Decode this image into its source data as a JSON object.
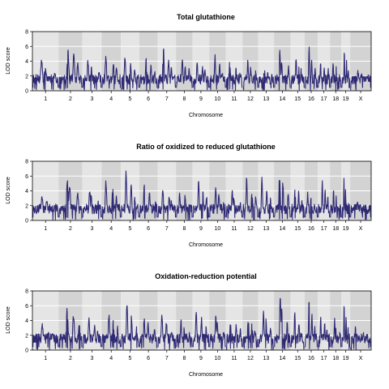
{
  "chart_data": [
    {
      "type": "line",
      "title": "Total glutathione",
      "xlabel": "Chromosome",
      "ylabel": "LOD score",
      "ylim": [
        0,
        8
      ],
      "yticks": [
        "0",
        "2",
        "4",
        "6",
        "8"
      ],
      "chromosomes": [
        "1",
        "2",
        "3",
        "4",
        "5",
        "6",
        "7",
        "8",
        "9",
        "10",
        "11",
        "12",
        "13",
        "14",
        "15",
        "16",
        "17",
        "18",
        "19",
        "X"
      ],
      "grid": true,
      "series": [
        {
          "color": "#2e2a74",
          "peaks": [
            [
              4.0,
              3.0,
              2.0
            ],
            [
              5.3,
              4.5,
              3.5
            ],
            [
              3.8,
              3.0,
              2.5
            ],
            [
              4.5,
              3.5,
              3.0
            ],
            [
              4.5,
              3.5,
              2.5
            ],
            [
              4.3,
              3.0,
              2.0
            ],
            [
              5.6,
              4.0,
              3.0
            ],
            [
              4.2,
              3.0,
              2.5
            ],
            [
              3.8,
              3.0,
              2.5
            ],
            [
              4.4,
              3.5,
              2.5
            ],
            [
              3.8,
              3.0,
              2.0
            ],
            [
              3.6,
              3.0,
              2.5
            ],
            [
              3.3,
              2.5,
              2.0
            ],
            [
              5.3,
              4.0,
              3.0
            ],
            [
              4.3,
              3.0,
              2.5
            ],
            [
              5.8,
              4.0,
              3.0
            ],
            [
              3.8,
              3.0,
              2.5
            ],
            [
              3.8,
              3.0,
              2.0
            ],
            [
              5.3,
              4.0,
              3.0
            ],
            [
              2.3,
              2.0,
              1.5
            ]
          ]
        }
      ]
    },
    {
      "type": "line",
      "title": "Ratio of oxidized to reduced glutathione",
      "xlabel": "Chromosome",
      "ylabel": "LOD score",
      "ylim": [
        0,
        8
      ],
      "yticks": [
        "0",
        "2",
        "4",
        "6",
        "8"
      ],
      "chromosomes": [
        "1",
        "2",
        "3",
        "4",
        "5",
        "6",
        "7",
        "8",
        "9",
        "10",
        "11",
        "12",
        "13",
        "14",
        "15",
        "16",
        "17",
        "18",
        "19",
        "X"
      ],
      "grid": true,
      "series": [
        {
          "color": "#2e2a74",
          "peaks": [
            [
              3.0,
              2.5,
              2.0
            ],
            [
              5.3,
              4.5,
              3.5
            ],
            [
              4.0,
              3.0,
              2.5
            ],
            [
              5.0,
              4.0,
              3.0
            ],
            [
              6.1,
              4.5,
              3.0
            ],
            [
              4.5,
              3.5,
              2.5
            ],
            [
              4.2,
              3.0,
              2.5
            ],
            [
              3.5,
              3.0,
              2.0
            ],
            [
              5.1,
              4.0,
              3.0
            ],
            [
              4.3,
              3.5,
              2.5
            ],
            [
              3.8,
              3.0,
              2.5
            ],
            [
              5.5,
              4.0,
              3.0
            ],
            [
              5.5,
              4.0,
              3.0
            ],
            [
              6.1,
              5.0,
              3.5
            ],
            [
              4.3,
              3.5,
              2.5
            ],
            [
              3.5,
              3.0,
              2.0
            ],
            [
              5.0,
              4.0,
              3.0
            ],
            [
              4.0,
              3.0,
              2.0
            ],
            [
              5.5,
              4.0,
              3.0
            ],
            [
              2.4,
              2.0,
              1.5
            ]
          ]
        }
      ]
    },
    {
      "type": "line",
      "title": "Oxidation-reduction potential",
      "xlabel": "Chromosome",
      "ylabel": "LOD score",
      "ylim": [
        0,
        8
      ],
      "yticks": [
        "0",
        "2",
        "4",
        "6",
        "8"
      ],
      "chromosomes": [
        "1",
        "2",
        "3",
        "4",
        "5",
        "6",
        "7",
        "8",
        "9",
        "10",
        "11",
        "12",
        "13",
        "14",
        "15",
        "16",
        "17",
        "18",
        "19",
        "X"
      ],
      "grid": true,
      "series": [
        {
          "color": "#2e2a74",
          "peaks": [
            [
              3.0,
              2.5,
              2.0
            ],
            [
              5.2,
              4.5,
              3.5
            ],
            [
              4.0,
              3.0,
              2.5
            ],
            [
              4.5,
              3.5,
              3.0
            ],
            [
              5.9,
              4.5,
              3.0
            ],
            [
              4.2,
              3.5,
              2.5
            ],
            [
              4.5,
              3.5,
              2.5
            ],
            [
              3.8,
              3.0,
              2.0
            ],
            [
              5.1,
              4.0,
              3.0
            ],
            [
              4.3,
              3.5,
              2.5
            ],
            [
              3.8,
              3.0,
              2.5
            ],
            [
              4.3,
              3.5,
              2.5
            ],
            [
              5.0,
              4.0,
              3.0
            ],
            [
              7.0,
              5.5,
              3.5
            ],
            [
              5.0,
              3.5,
              2.5
            ],
            [
              6.4,
              4.5,
              3.0
            ],
            [
              4.5,
              3.5,
              2.5
            ],
            [
              4.3,
              3.0,
              2.0
            ],
            [
              6.1,
              4.5,
              3.0
            ],
            [
              2.8,
              2.0,
              1.5
            ]
          ]
        }
      ]
    }
  ]
}
